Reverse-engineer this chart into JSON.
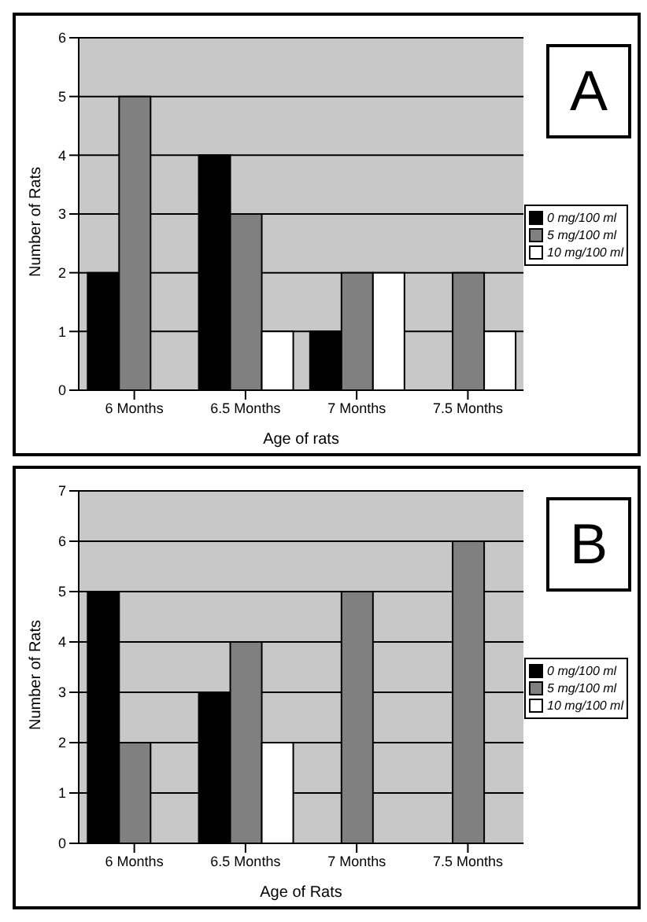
{
  "chart_data": [
    {
      "type": "bar",
      "xlabel": "Age of rats",
      "ylabel": "Number of Rats",
      "annotations": [
        "A"
      ],
      "categories": [
        "6 Months",
        "6.5 Months",
        "7 Months",
        "7.5 Months"
      ],
      "series": [
        {
          "name": "0 mg/100 ml",
          "color": "#000000",
          "values": [
            2,
            4,
            1,
            0
          ]
        },
        {
          "name": "5 mg/100 ml",
          "color": "#808080",
          "values": [
            5,
            3,
            2,
            2
          ]
        },
        {
          "name": "10 mg/100 ml",
          "color": "#ffffff",
          "values": [
            0,
            1,
            2,
            1
          ]
        }
      ],
      "ylim": [
        0,
        6
      ],
      "yticks": [
        0,
        1,
        2,
        3,
        4,
        5,
        6
      ],
      "grid": "y",
      "legend": "right"
    },
    {
      "type": "bar",
      "xlabel": "Age of Rats",
      "ylabel": "Number of Rats",
      "annotations": [
        "B"
      ],
      "categories": [
        "6 Months",
        "6.5 Months",
        "7 Months",
        "7.5 Months"
      ],
      "series": [
        {
          "name": "0 mg/100 ml",
          "color": "#000000",
          "values": [
            5,
            3,
            0,
            0
          ]
        },
        {
          "name": "5 mg/100 ml",
          "color": "#808080",
          "values": [
            2,
            4,
            5,
            6
          ]
        },
        {
          "name": "10 mg/100 ml",
          "color": "#ffffff",
          "values": [
            0,
            2,
            0,
            0
          ]
        }
      ],
      "ylim": [
        0,
        7
      ],
      "yticks": [
        0,
        1,
        2,
        3,
        4,
        5,
        6,
        7
      ],
      "grid": "y",
      "legend": "right"
    }
  ]
}
